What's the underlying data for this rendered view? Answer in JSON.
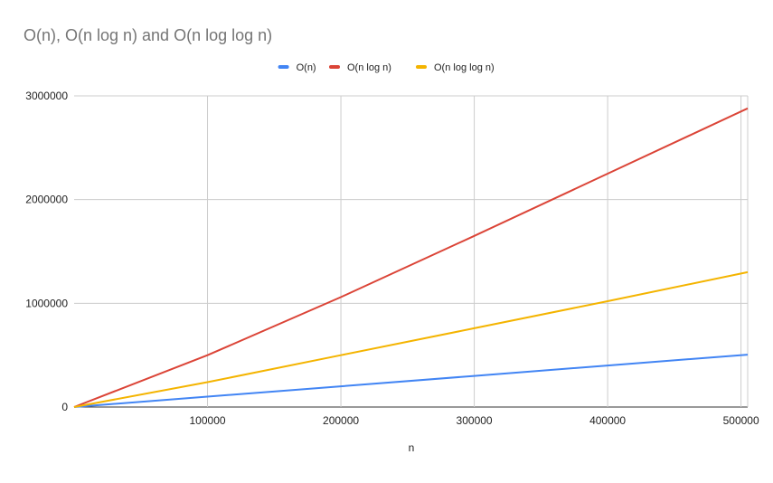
{
  "chart_data": {
    "type": "line",
    "title": "O(n), O(n log n) and O(n log log n)",
    "xlabel": "n",
    "ylabel": "",
    "xlim": [
      0,
      505000
    ],
    "ylim": [
      0,
      3000000
    ],
    "x_ticks": [
      100000,
      200000,
      300000,
      400000,
      500000
    ],
    "y_ticks": [
      0,
      1000000,
      2000000,
      3000000
    ],
    "x_tick_labels": [
      "100000",
      "200000",
      "300000",
      "400000",
      "500000"
    ],
    "y_tick_labels": [
      "0",
      "1000000",
      "2000000",
      "3000000"
    ],
    "grid": true,
    "legend_position": "top",
    "x": [
      0,
      100000,
      200000,
      300000,
      400000,
      505000
    ],
    "series": [
      {
        "name": "O(n)",
        "color": "#4285f4",
        "values": [
          0,
          100000,
          200000,
          300000,
          400000,
          505000
        ]
      },
      {
        "name": "O(n log n)",
        "color": "#db4437",
        "values": [
          0,
          500000,
          1060000,
          1650000,
          2250000,
          2880000
        ]
      },
      {
        "name": "O(n log log n)",
        "color": "#f4b400",
        "values": [
          0,
          240000,
          500000,
          760000,
          1020000,
          1300000
        ]
      }
    ]
  }
}
